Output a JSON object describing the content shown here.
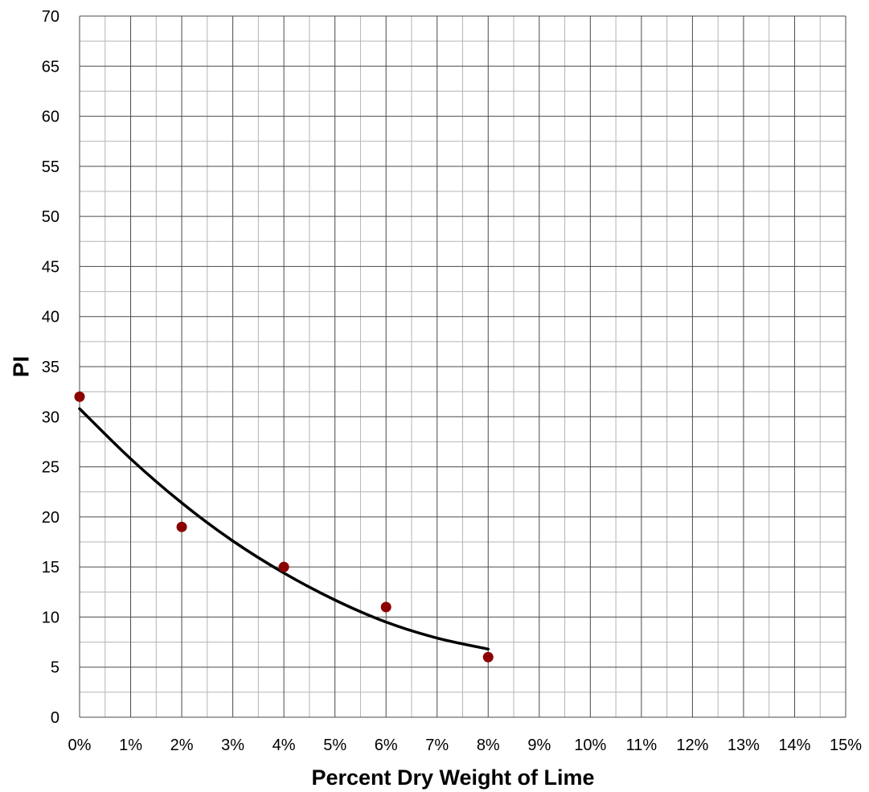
{
  "chart_data": {
    "type": "scatter",
    "title": "",
    "xlabel": "Percent Dry Weight of Lime",
    "ylabel": "PI",
    "xlim": [
      0,
      15
    ],
    "ylim": [
      0,
      70
    ],
    "x_ticks": [
      0,
      1,
      2,
      3,
      4,
      5,
      6,
      7,
      8,
      9,
      10,
      11,
      12,
      13,
      14,
      15
    ],
    "x_tick_labels": [
      "0%",
      "1%",
      "2%",
      "3%",
      "4%",
      "5%",
      "6%",
      "7%",
      "8%",
      "9%",
      "10%",
      "11%",
      "12%",
      "13%",
      "14%",
      "15%"
    ],
    "y_ticks": [
      0,
      5,
      10,
      15,
      20,
      25,
      30,
      35,
      40,
      45,
      50,
      55,
      60,
      65,
      70
    ],
    "y_tick_labels": [
      "0",
      "5",
      "10",
      "15",
      "20",
      "25",
      "30",
      "35",
      "40",
      "45",
      "50",
      "55",
      "60",
      "65",
      "70"
    ],
    "grid": true,
    "minor_grid": true,
    "legend": "none",
    "series": [
      {
        "kind": "points",
        "color": "#8b0000",
        "points": [
          {
            "x": 0,
            "y": 32
          },
          {
            "x": 2,
            "y": 19
          },
          {
            "x": 4,
            "y": 15
          },
          {
            "x": 6,
            "y": 11
          },
          {
            "x": 8,
            "y": 6
          }
        ]
      },
      {
        "kind": "trendline",
        "color": "#000000",
        "x": [
          0,
          1,
          2,
          3,
          4,
          5,
          6,
          7,
          8
        ],
        "y": [
          30.8,
          25.8,
          21.4,
          17.6,
          14.4,
          11.7,
          9.5,
          7.9,
          6.8
        ]
      }
    ]
  }
}
